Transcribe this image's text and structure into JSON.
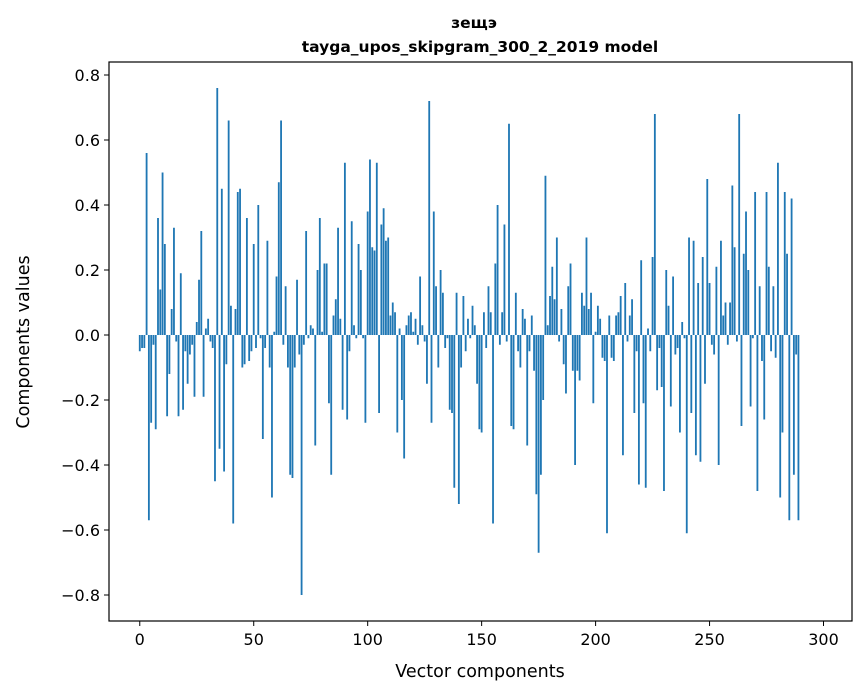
{
  "chart_data": {
    "type": "bar",
    "title": [
      "зещэ",
      "tayga_upos_skipgram_300_2_2019 model"
    ],
    "xlabel": "Vector components",
    "ylabel": "Components values",
    "xlim": [
      -13.5,
      312.5
    ],
    "ylim": [
      -0.88,
      0.84
    ],
    "xticks": [
      0,
      50,
      100,
      150,
      200,
      250,
      300
    ],
    "xtick_labels": [
      "0",
      "50",
      "100",
      "150",
      "200",
      "250",
      "300"
    ],
    "yticks": [
      0.8,
      0.6,
      0.4,
      0.2,
      0.0,
      -0.2,
      -0.4,
      -0.6,
      -0.8
    ],
    "ytick_labels": [
      "0.8",
      "0.6",
      "0.4",
      "0.2",
      "0.0",
      "−0.2",
      "−0.4",
      "−0.6",
      "−0.8"
    ],
    "bar_color": "#1f77b4",
    "values": [
      -0.05,
      -0.04,
      -0.04,
      0.56,
      -0.57,
      -0.27,
      -0.03,
      -0.29,
      0.36,
      0.14,
      0.5,
      0.28,
      -0.25,
      -0.12,
      0.08,
      0.33,
      -0.02,
      -0.25,
      0.19,
      -0.23,
      -0.05,
      -0.15,
      -0.06,
      -0.03,
      -0.19,
      0.04,
      0.17,
      0.32,
      -0.19,
      0.02,
      0.05,
      -0.02,
      -0.04,
      -0.45,
      0.76,
      -0.35,
      0.45,
      -0.42,
      -0.09,
      0.66,
      0.09,
      -0.58,
      0.08,
      0.44,
      0.45,
      -0.1,
      -0.09,
      0.36,
      -0.08,
      -0.05,
      0.28,
      -0.04,
      0.4,
      -0.01,
      -0.32,
      -0.04,
      0.29,
      -0.1,
      -0.5,
      0.01,
      0.18,
      0.47,
      0.66,
      -0.03,
      0.15,
      -0.1,
      -0.43,
      -0.44,
      -0.1,
      0.17,
      -0.06,
      -0.8,
      -0.03,
      0.32,
      -0.01,
      0.03,
      0.02,
      -0.34,
      0.2,
      0.36,
      0.01,
      0.22,
      0.22,
      -0.21,
      -0.43,
      0.06,
      0.11,
      0.33,
      0.05,
      -0.23,
      0.53,
      -0.26,
      -0.05,
      0.35,
      0.03,
      -0.01,
      0.28,
      0.2,
      -0.01,
      -0.27,
      0.38,
      0.54,
      0.27,
      0.26,
      0.53,
      -0.24,
      0.34,
      0.39,
      0.29,
      0.3,
      0.06,
      0.1,
      0.07,
      -0.3,
      0.02,
      -0.2,
      -0.38,
      0.03,
      0.06,
      0.07,
      0.01,
      0.05,
      -0.03,
      0.18,
      0.03,
      -0.02,
      -0.15,
      0.72,
      -0.27,
      0.38,
      0.15,
      -0.1,
      0.2,
      0.13,
      -0.04,
      -0.01,
      -0.23,
      -0.24,
      -0.47,
      0.13,
      -0.52,
      -0.1,
      0.12,
      -0.05,
      0.05,
      -0.01,
      0.09,
      0.03,
      -0.15,
      -0.29,
      -0.3,
      0.07,
      -0.04,
      0.15,
      0.07,
      -0.58,
      0.22,
      0.4,
      -0.03,
      0.07,
      0.34,
      -0.02,
      0.65,
      -0.28,
      -0.29,
      0.13,
      -0.05,
      -0.1,
      0.08,
      0.05,
      -0.34,
      -0.05,
      0.06,
      -0.11,
      -0.49,
      -0.67,
      -0.43,
      -0.2,
      0.49,
      0.03,
      0.12,
      0.21,
      0.11,
      0.3,
      -0.02,
      0.08,
      -0.09,
      -0.18,
      0.15,
      0.22,
      -0.11,
      -0.4,
      -0.11,
      -0.14,
      0.13,
      0.09,
      0.3,
      0.08,
      0.13,
      -0.21,
      0.01,
      0.09,
      0.05,
      -0.07,
      -0.08,
      -0.61,
      0.06,
      -0.07,
      -0.08,
      0.06,
      0.07,
      0.12,
      -0.37,
      0.16,
      -0.02,
      0.06,
      0.11,
      -0.24,
      -0.05,
      -0.46,
      0.23,
      -0.21,
      -0.47,
      0.02,
      -0.05,
      0.24,
      0.68,
      -0.17,
      -0.04,
      -0.16,
      -0.48,
      0.2,
      0.09,
      -0.22,
      0.18,
      -0.06,
      -0.04,
      -0.3,
      0.04,
      -0.01,
      -0.61,
      0.3,
      -0.24,
      0.29,
      -0.37,
      0.16,
      -0.39,
      0.24,
      -0.15,
      0.48,
      0.16,
      -0.03,
      -0.06,
      0.21,
      -0.4,
      0.29,
      0.06,
      0.1,
      -0.03,
      0.1,
      0.46,
      0.27,
      -0.02,
      0.68,
      -0.28,
      0.25,
      0.38,
      0.2,
      -0.22,
      -0.01,
      0.44,
      -0.48,
      0.15,
      -0.08,
      -0.26,
      0.44,
      0.21,
      -0.05,
      0.15,
      -0.07,
      0.53,
      -0.5,
      -0.3,
      0.44,
      0.25,
      -0.57,
      0.42,
      -0.43,
      -0.06,
      -0.57
    ]
  }
}
